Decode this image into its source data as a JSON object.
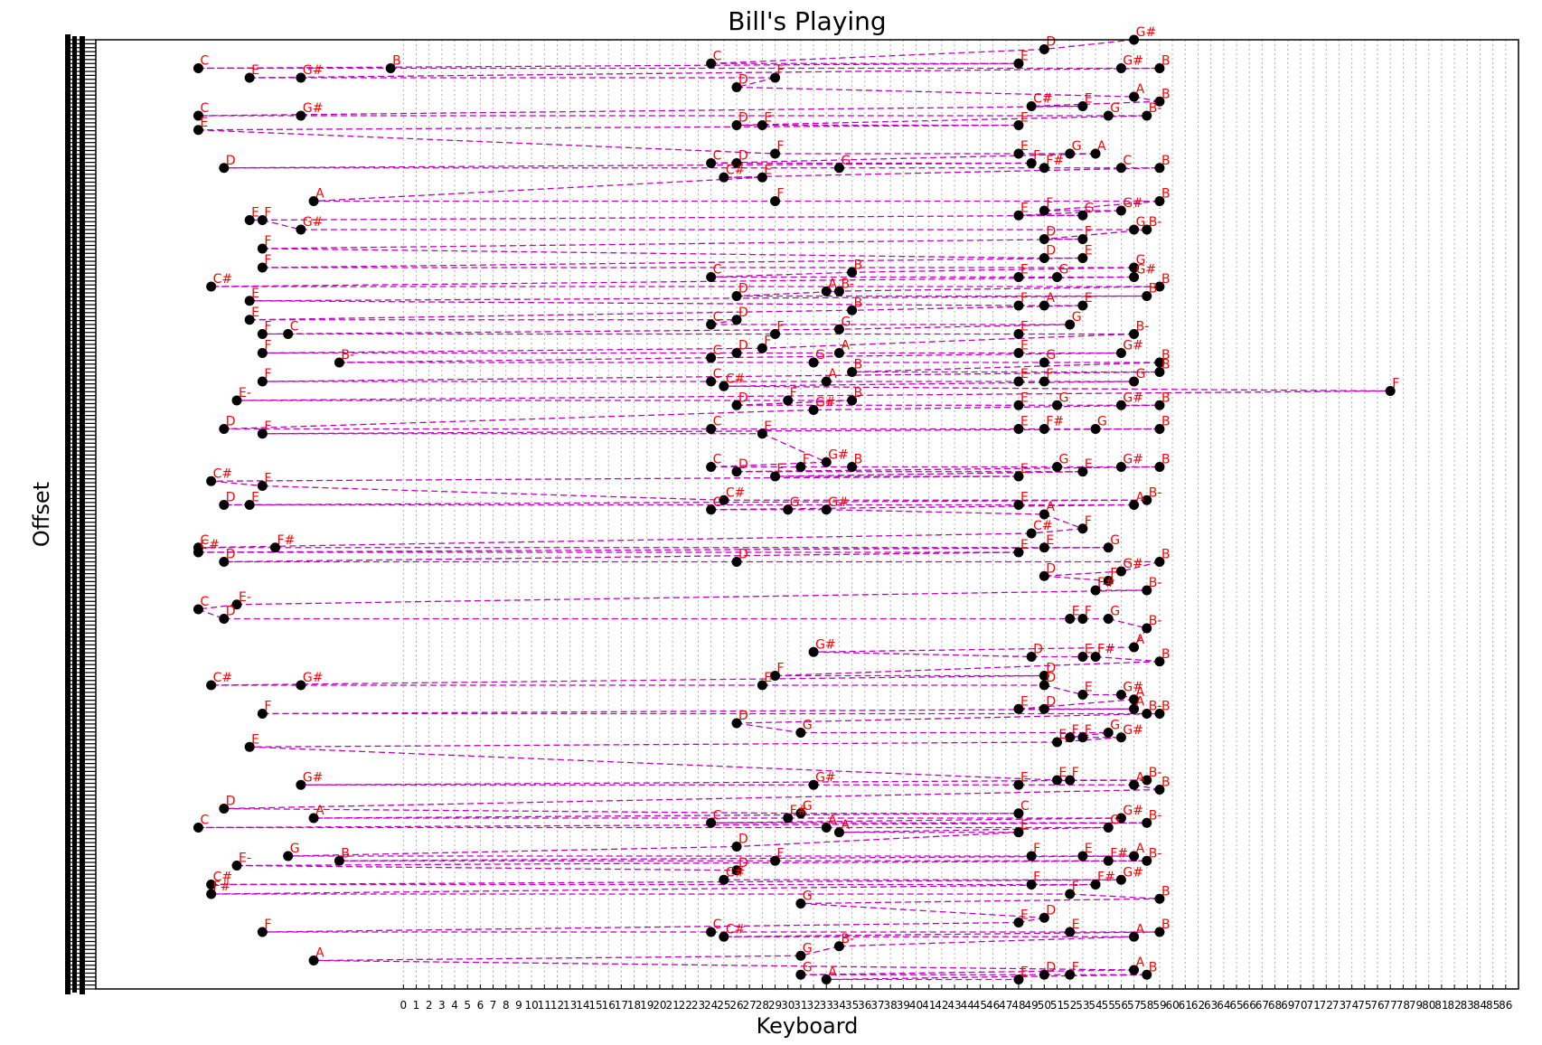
{
  "chart_data": {
    "type": "scatter",
    "title": "Bill's Playing",
    "xlabel": "Keyboard",
    "ylabel": "Offset",
    "xlim": [
      -24,
      87
    ],
    "ylim": [
      0,
      100
    ],
    "x_tick_labels": [
      "0",
      "1",
      "2",
      "3",
      "4",
      "5",
      "6",
      "7",
      "8",
      "9",
      "10",
      "11",
      "12",
      "13",
      "14",
      "15",
      "16",
      "17",
      "18",
      "19",
      "20",
      "21",
      "22",
      "23",
      "24",
      "25",
      "26",
      "27",
      "28",
      "29",
      "30",
      "31",
      "32",
      "33",
      "34",
      "35",
      "36",
      "37",
      "38",
      "39",
      "40",
      "41",
      "42",
      "43",
      "44",
      "45",
      "46",
      "47",
      "48",
      "49",
      "50",
      "51",
      "52",
      "53",
      "54",
      "55",
      "56",
      "57",
      "58",
      "59",
      "60",
      "61",
      "62",
      "63",
      "64",
      "65",
      "66",
      "67",
      "68",
      "69",
      "70",
      "71",
      "72",
      "73",
      "74",
      "75",
      "76",
      "77",
      "78",
      "79",
      "80",
      "81",
      "82",
      "83",
      "84",
      "85",
      "86"
    ],
    "grid": true,
    "line_style": "dashed",
    "colors": {
      "marker": "#000000",
      "note_label": "#ff0000",
      "connector": "#bf00bf",
      "grid": "#b0b0b0"
    },
    "note_names": [
      "C",
      "C#",
      "D",
      "E-",
      "E",
      "F",
      "F#",
      "G",
      "G#",
      "A",
      "B-",
      "B"
    ],
    "points": [
      {
        "x": -16,
        "y": 3,
        "note": "C"
      },
      {
        "x": -12,
        "y": 4,
        "note": "E"
      },
      {
        "x": -8,
        "y": 4,
        "note": "G#"
      },
      {
        "x": -1,
        "y": 3,
        "note": "B"
      },
      {
        "x": 24,
        "y": 2.5,
        "note": "C"
      },
      {
        "x": 29,
        "y": 4,
        "note": "F"
      },
      {
        "x": 48,
        "y": 2.5,
        "note": "E"
      },
      {
        "x": 50,
        "y": 1,
        "note": "D"
      },
      {
        "x": 56,
        "y": 3,
        "note": "G#"
      },
      {
        "x": 59,
        "y": 3,
        "note": "B"
      },
      {
        "x": 57,
        "y": 0,
        "note": "G#"
      },
      {
        "x": 26,
        "y": 5,
        "note": "D"
      },
      {
        "x": 49,
        "y": 7,
        "note": "C#"
      },
      {
        "x": 53,
        "y": 7,
        "note": "E"
      },
      {
        "x": 57,
        "y": 6,
        "note": "A"
      },
      {
        "x": 59,
        "y": 6.5,
        "note": "B"
      },
      {
        "x": -16,
        "y": 8,
        "note": "C"
      },
      {
        "x": -16,
        "y": 9.5,
        "note": "E"
      },
      {
        "x": -8,
        "y": 8,
        "note": "G#"
      },
      {
        "x": 26,
        "y": 9,
        "note": "D"
      },
      {
        "x": 28,
        "y": 9,
        "note": "E"
      },
      {
        "x": 48,
        "y": 9,
        "note": "E"
      },
      {
        "x": 55,
        "y": 8,
        "note": "G"
      },
      {
        "x": 58,
        "y": 8,
        "note": "B-"
      },
      {
        "x": -14,
        "y": 13.5,
        "note": "D"
      },
      {
        "x": 24,
        "y": 13,
        "note": "C"
      },
      {
        "x": 26,
        "y": 13,
        "note": "D"
      },
      {
        "x": 29,
        "y": 12,
        "note": "F"
      },
      {
        "x": 34,
        "y": 13.5,
        "note": "G"
      },
      {
        "x": 25,
        "y": 14.5,
        "note": "C#"
      },
      {
        "x": 28,
        "y": 14.5,
        "note": "E"
      },
      {
        "x": 48,
        "y": 12,
        "note": "E"
      },
      {
        "x": 49,
        "y": 13,
        "note": "F"
      },
      {
        "x": 50,
        "y": 13.5,
        "note": "F#"
      },
      {
        "x": 52,
        "y": 12,
        "note": "G"
      },
      {
        "x": 54,
        "y": 12,
        "note": "A"
      },
      {
        "x": 56,
        "y": 13.5,
        "note": "C"
      },
      {
        "x": 59,
        "y": 13.5,
        "note": "B"
      },
      {
        "x": -7,
        "y": 17,
        "note": "A"
      },
      {
        "x": 29,
        "y": 17,
        "note": "F"
      },
      {
        "x": 48,
        "y": 18.5,
        "note": "E"
      },
      {
        "x": 50,
        "y": 18,
        "note": "F"
      },
      {
        "x": 53,
        "y": 18.5,
        "note": "G"
      },
      {
        "x": 56,
        "y": 18,
        "note": "G#"
      },
      {
        "x": 59,
        "y": 17,
        "note": "B"
      },
      {
        "x": -12,
        "y": 19,
        "note": "E"
      },
      {
        "x": -11,
        "y": 19,
        "note": "F"
      },
      {
        "x": -8,
        "y": 20,
        "note": "G#"
      },
      {
        "x": 50,
        "y": 21,
        "note": "D"
      },
      {
        "x": 53,
        "y": 21,
        "note": "F"
      },
      {
        "x": 57,
        "y": 20,
        "note": "G"
      },
      {
        "x": 58,
        "y": 20,
        "note": "B-"
      },
      {
        "x": -11,
        "y": 22,
        "note": "F"
      },
      {
        "x": -11,
        "y": 24,
        "note": "F"
      },
      {
        "x": 50,
        "y": 23,
        "note": "D"
      },
      {
        "x": 53,
        "y": 23,
        "note": "E"
      },
      {
        "x": 57,
        "y": 24,
        "note": "G"
      },
      {
        "x": -15,
        "y": 26,
        "note": "C#"
      },
      {
        "x": 24,
        "y": 25,
        "note": "C"
      },
      {
        "x": 35,
        "y": 24.5,
        "note": "B"
      },
      {
        "x": 48,
        "y": 25,
        "note": "E"
      },
      {
        "x": 51,
        "y": 25,
        "note": "G"
      },
      {
        "x": 57,
        "y": 25,
        "note": "G#"
      },
      {
        "x": 59,
        "y": 26,
        "note": "B"
      },
      {
        "x": -12,
        "y": 27.5,
        "note": "E"
      },
      {
        "x": 26,
        "y": 27,
        "note": "D"
      },
      {
        "x": 33,
        "y": 26.5,
        "note": "A"
      },
      {
        "x": 34,
        "y": 26.5,
        "note": "B-"
      },
      {
        "x": 35,
        "y": 28.5,
        "note": "B"
      },
      {
        "x": 48,
        "y": 28,
        "note": "F"
      },
      {
        "x": 50,
        "y": 28,
        "note": "A"
      },
      {
        "x": 53,
        "y": 28,
        "note": "E"
      },
      {
        "x": 58,
        "y": 27,
        "note": "B"
      },
      {
        "x": -12,
        "y": 29.5,
        "note": "E"
      },
      {
        "x": -11,
        "y": 31,
        "note": "F"
      },
      {
        "x": -9,
        "y": 31,
        "note": "C"
      },
      {
        "x": 24,
        "y": 30,
        "note": "C"
      },
      {
        "x": 26,
        "y": 29.5,
        "note": "D"
      },
      {
        "x": 29,
        "y": 31,
        "note": "F"
      },
      {
        "x": 34,
        "y": 30.5,
        "note": "G"
      },
      {
        "x": 48,
        "y": 31,
        "note": "E"
      },
      {
        "x": 52,
        "y": 30,
        "note": "G"
      },
      {
        "x": 57,
        "y": 31,
        "note": "B-"
      },
      {
        "x": -11,
        "y": 33,
        "note": "F"
      },
      {
        "x": -5,
        "y": 34,
        "note": "B-"
      },
      {
        "x": 24,
        "y": 33.5,
        "note": "C"
      },
      {
        "x": 26,
        "y": 33,
        "note": "D"
      },
      {
        "x": 28,
        "y": 32.5,
        "note": "F"
      },
      {
        "x": 32,
        "y": 34,
        "note": "G"
      },
      {
        "x": 34,
        "y": 33,
        "note": "A"
      },
      {
        "x": 48,
        "y": 33,
        "note": "E"
      },
      {
        "x": 50,
        "y": 34,
        "note": "G"
      },
      {
        "x": 56,
        "y": 33,
        "note": "G#"
      },
      {
        "x": 59,
        "y": 34,
        "note": "B"
      },
      {
        "x": -11,
        "y": 36,
        "note": "F"
      },
      {
        "x": 24,
        "y": 36,
        "note": "C"
      },
      {
        "x": 25,
        "y": 36.5,
        "note": "C#"
      },
      {
        "x": 33,
        "y": 36,
        "note": "A"
      },
      {
        "x": 35,
        "y": 35,
        "note": "B"
      },
      {
        "x": 48,
        "y": 36,
        "note": "E"
      },
      {
        "x": 50,
        "y": 36,
        "note": "F"
      },
      {
        "x": 57,
        "y": 36,
        "note": "G"
      },
      {
        "x": 59,
        "y": 35,
        "note": "B"
      },
      {
        "x": 77,
        "y": 37,
        "note": "F"
      },
      {
        "x": -13,
        "y": 38,
        "note": "E-"
      },
      {
        "x": 26,
        "y": 38.5,
        "note": "D"
      },
      {
        "x": 30,
        "y": 38,
        "note": "F"
      },
      {
        "x": 32,
        "y": 39,
        "note": "G#"
      },
      {
        "x": 35,
        "y": 38,
        "note": "B"
      },
      {
        "x": 48,
        "y": 38.5,
        "note": "E"
      },
      {
        "x": 51,
        "y": 38.5,
        "note": "G"
      },
      {
        "x": 56,
        "y": 38.5,
        "note": "G#"
      },
      {
        "x": 59,
        "y": 38.5,
        "note": "B"
      },
      {
        "x": -14,
        "y": 41,
        "note": "D"
      },
      {
        "x": -11,
        "y": 41.5,
        "note": "F"
      },
      {
        "x": 24,
        "y": 41,
        "note": "C"
      },
      {
        "x": 28,
        "y": 41.5,
        "note": "E"
      },
      {
        "x": 48,
        "y": 41,
        "note": "E"
      },
      {
        "x": 50,
        "y": 41,
        "note": "F#"
      },
      {
        "x": 54,
        "y": 41,
        "note": "G"
      },
      {
        "x": 59,
        "y": 41,
        "note": "B"
      },
      {
        "x": -15,
        "y": 46.5,
        "note": "C#"
      },
      {
        "x": -11,
        "y": 47,
        "note": "F"
      },
      {
        "x": 24,
        "y": 45,
        "note": "C"
      },
      {
        "x": 26,
        "y": 45.5,
        "note": "D"
      },
      {
        "x": 29,
        "y": 46,
        "note": "F"
      },
      {
        "x": 31,
        "y": 45,
        "note": "F"
      },
      {
        "x": 33,
        "y": 44.5,
        "note": "G#"
      },
      {
        "x": 35,
        "y": 45,
        "note": "B"
      },
      {
        "x": 48,
        "y": 46,
        "note": "E"
      },
      {
        "x": 51,
        "y": 45,
        "note": "G"
      },
      {
        "x": 53,
        "y": 45.5,
        "note": "E"
      },
      {
        "x": 56,
        "y": 45,
        "note": "G#"
      },
      {
        "x": 59,
        "y": 45,
        "note": "B"
      },
      {
        "x": -14,
        "y": 49,
        "note": "D"
      },
      {
        "x": -12,
        "y": 49,
        "note": "E"
      },
      {
        "x": 24,
        "y": 49.5,
        "note": "C"
      },
      {
        "x": 25,
        "y": 48.5,
        "note": "C#"
      },
      {
        "x": 30,
        "y": 49.5,
        "note": "G"
      },
      {
        "x": 33,
        "y": 49.5,
        "note": "G#"
      },
      {
        "x": 48,
        "y": 49,
        "note": "E"
      },
      {
        "x": 50,
        "y": 50,
        "note": "A"
      },
      {
        "x": 53,
        "y": 51.5,
        "note": "F"
      },
      {
        "x": 57,
        "y": 49,
        "note": "A"
      },
      {
        "x": 58,
        "y": 48.5,
        "note": "B-"
      },
      {
        "x": -16,
        "y": 53.5,
        "note": "C"
      },
      {
        "x": -16,
        "y": 54,
        "note": "C#"
      },
      {
        "x": -10,
        "y": 53.5,
        "note": "F#"
      },
      {
        "x": -14,
        "y": 55,
        "note": "D"
      },
      {
        "x": 26,
        "y": 55,
        "note": "D"
      },
      {
        "x": 49,
        "y": 52,
        "note": "C#"
      },
      {
        "x": 48,
        "y": 54,
        "note": "E"
      },
      {
        "x": 50,
        "y": 53.5,
        "note": "E"
      },
      {
        "x": 55,
        "y": 53.5,
        "note": "G"
      },
      {
        "x": 59,
        "y": 55,
        "note": "B"
      },
      {
        "x": 50,
        "y": 56.5,
        "note": "D"
      },
      {
        "x": 55,
        "y": 57,
        "note": "F"
      },
      {
        "x": 56,
        "y": 56,
        "note": "G#"
      },
      {
        "x": 54,
        "y": 58,
        "note": "F#"
      },
      {
        "x": 58,
        "y": 58,
        "note": "B-"
      },
      {
        "x": -16,
        "y": 60,
        "note": "C"
      },
      {
        "x": -13,
        "y": 59.5,
        "note": "E-"
      },
      {
        "x": -14,
        "y": 61,
        "note": "D"
      },
      {
        "x": 52,
        "y": 61,
        "note": "E"
      },
      {
        "x": 53,
        "y": 61,
        "note": "F"
      },
      {
        "x": 55,
        "y": 61,
        "note": "G"
      },
      {
        "x": 58,
        "y": 62,
        "note": "B-"
      },
      {
        "x": 32,
        "y": 64.5,
        "note": "G#"
      },
      {
        "x": 49,
        "y": 65,
        "note": "D"
      },
      {
        "x": 53,
        "y": 65,
        "note": "E"
      },
      {
        "x": 54,
        "y": 65,
        "note": "F#"
      },
      {
        "x": 57,
        "y": 64,
        "note": "A"
      },
      {
        "x": 59,
        "y": 65.5,
        "note": "B"
      },
      {
        "x": -15,
        "y": 68,
        "note": "C#"
      },
      {
        "x": -8,
        "y": 68,
        "note": "G#"
      },
      {
        "x": 28,
        "y": 68,
        "note": "E"
      },
      {
        "x": 29,
        "y": 67,
        "note": "F"
      },
      {
        "x": 50,
        "y": 67,
        "note": "D"
      },
      {
        "x": 50,
        "y": 68,
        "note": "D"
      },
      {
        "x": 53,
        "y": 69,
        "note": "E"
      },
      {
        "x": 56,
        "y": 69,
        "note": "G#"
      },
      {
        "x": 57,
        "y": 69.5,
        "note": "A"
      },
      {
        "x": -11,
        "y": 71,
        "note": "F"
      },
      {
        "x": 26,
        "y": 72,
        "note": "D"
      },
      {
        "x": 48,
        "y": 70.5,
        "note": "E"
      },
      {
        "x": 50,
        "y": 70.5,
        "note": "D"
      },
      {
        "x": 57,
        "y": 70.5,
        "note": "A"
      },
      {
        "x": 58,
        "y": 71,
        "note": "B-"
      },
      {
        "x": 59,
        "y": 71,
        "note": "B"
      },
      {
        "x": -12,
        "y": 74.5,
        "note": "E"
      },
      {
        "x": 31,
        "y": 73,
        "note": "G"
      },
      {
        "x": 51,
        "y": 74,
        "note": "E"
      },
      {
        "x": 52,
        "y": 73.5,
        "note": "F"
      },
      {
        "x": 53,
        "y": 73.5,
        "note": "F"
      },
      {
        "x": 55,
        "y": 73,
        "note": "G"
      },
      {
        "x": 56,
        "y": 73.5,
        "note": "G#"
      },
      {
        "x": -8,
        "y": 78.5,
        "note": "G#"
      },
      {
        "x": 32,
        "y": 78.5,
        "note": "G#"
      },
      {
        "x": 48,
        "y": 78.5,
        "note": "E"
      },
      {
        "x": 51,
        "y": 78,
        "note": "E"
      },
      {
        "x": 52,
        "y": 78,
        "note": "F"
      },
      {
        "x": 57,
        "y": 78.5,
        "note": "A"
      },
      {
        "x": 58,
        "y": 78,
        "note": "B-"
      },
      {
        "x": 59,
        "y": 79,
        "note": "B"
      },
      {
        "x": -14,
        "y": 81,
        "note": "D"
      },
      {
        "x": -7,
        "y": 82,
        "note": "A"
      },
      {
        "x": -16,
        "y": 83,
        "note": "C"
      },
      {
        "x": 24,
        "y": 82.5,
        "note": "C"
      },
      {
        "x": 30,
        "y": 82,
        "note": "F#"
      },
      {
        "x": 31,
        "y": 81.5,
        "note": "G"
      },
      {
        "x": 33,
        "y": 83,
        "note": "A"
      },
      {
        "x": 34,
        "y": 83.5,
        "note": "A"
      },
      {
        "x": 48,
        "y": 81.5,
        "note": "C"
      },
      {
        "x": 48,
        "y": 83.5,
        "note": "E"
      },
      {
        "x": 55,
        "y": 83,
        "note": "G"
      },
      {
        "x": 56,
        "y": 82,
        "note": "G#"
      },
      {
        "x": 58,
        "y": 82.5,
        "note": "B-"
      },
      {
        "x": -9,
        "y": 86,
        "note": "G"
      },
      {
        "x": -5,
        "y": 86.5,
        "note": "B"
      },
      {
        "x": -13,
        "y": 87,
        "note": "E-"
      },
      {
        "x": 26,
        "y": 85,
        "note": "D"
      },
      {
        "x": 29,
        "y": 86.5,
        "note": "F"
      },
      {
        "x": 49,
        "y": 86,
        "note": "F"
      },
      {
        "x": 53,
        "y": 86,
        "note": "E"
      },
      {
        "x": 55,
        "y": 86.5,
        "note": "F#"
      },
      {
        "x": 57,
        "y": 86,
        "note": "A"
      },
      {
        "x": 58,
        "y": 86.5,
        "note": "B-"
      },
      {
        "x": -15,
        "y": 89,
        "note": "C#"
      },
      {
        "x": -15,
        "y": 90,
        "note": "F#"
      },
      {
        "x": 25,
        "y": 88.5,
        "note": "C#"
      },
      {
        "x": 26,
        "y": 87.5,
        "note": "D"
      },
      {
        "x": 31,
        "y": 91,
        "note": "G"
      },
      {
        "x": 49,
        "y": 89,
        "note": "F"
      },
      {
        "x": 52,
        "y": 90,
        "note": "F"
      },
      {
        "x": 54,
        "y": 89,
        "note": "F#"
      },
      {
        "x": 56,
        "y": 88.5,
        "note": "G#"
      },
      {
        "x": 59,
        "y": 90.5,
        "note": "B"
      },
      {
        "x": -11,
        "y": 94,
        "note": "F"
      },
      {
        "x": 24,
        "y": 94,
        "note": "C"
      },
      {
        "x": 25,
        "y": 94.5,
        "note": "C#"
      },
      {
        "x": 34,
        "y": 95.5,
        "note": "B-"
      },
      {
        "x": 48,
        "y": 93,
        "note": "E"
      },
      {
        "x": 50,
        "y": 92.5,
        "note": "D"
      },
      {
        "x": 52,
        "y": 94,
        "note": "E"
      },
      {
        "x": 57,
        "y": 94.5,
        "note": "A"
      },
      {
        "x": 59,
        "y": 94,
        "note": "B"
      },
      {
        "x": -7,
        "y": 97,
        "note": "A"
      },
      {
        "x": 31,
        "y": 96.5,
        "note": "G"
      },
      {
        "x": 31,
        "y": 98.5,
        "note": "G"
      },
      {
        "x": 33,
        "y": 99,
        "note": "A"
      },
      {
        "x": 48,
        "y": 99,
        "note": "E"
      },
      {
        "x": 50,
        "y": 98.5,
        "note": "D"
      },
      {
        "x": 52,
        "y": 98.5,
        "note": "F"
      },
      {
        "x": 57,
        "y": 98,
        "note": "A"
      },
      {
        "x": 58,
        "y": 98.5,
        "note": "B"
      }
    ]
  }
}
